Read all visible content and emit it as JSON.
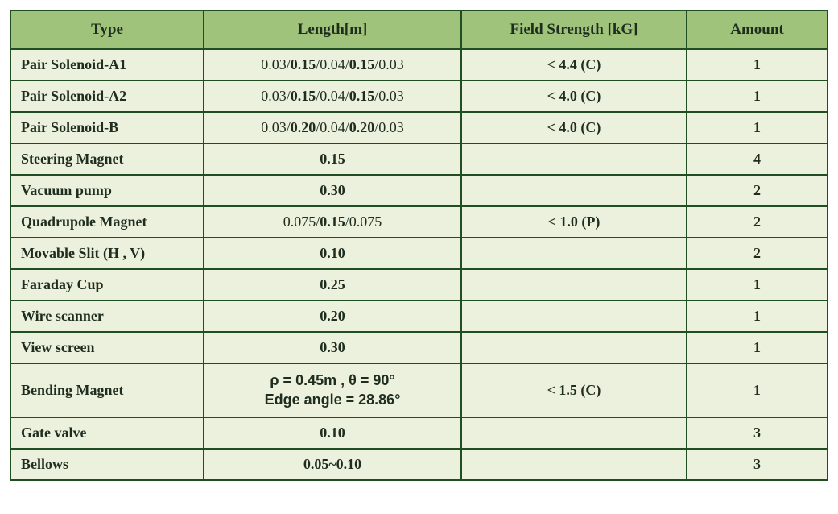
{
  "table": {
    "background_header": "#9fc37a",
    "background_body": "#ecf1de",
    "border_color": "#1f4e23",
    "text_color": "#1f2d1f",
    "columns": [
      {
        "key": "type",
        "label": "Type"
      },
      {
        "key": "length",
        "label": "Length[m]"
      },
      {
        "key": "field",
        "label": "Field Strength [kG]"
      },
      {
        "key": "amount",
        "label": "Amount"
      }
    ],
    "rows": [
      {
        "type": "Pair Solenoid-A1",
        "length_segments": [
          {
            "text": "0.03/",
            "weight": "normal"
          },
          {
            "text": "0.15",
            "weight": "bold"
          },
          {
            "text": "/0.04/",
            "weight": "normal"
          },
          {
            "text": "0.15",
            "weight": "bold"
          },
          {
            "text": "/0.03",
            "weight": "normal"
          }
        ],
        "field": "< 4.4 (C)",
        "amount": "1"
      },
      {
        "type": "Pair Solenoid-A2",
        "length_segments": [
          {
            "text": "0.03/",
            "weight": "normal"
          },
          {
            "text": "0.15",
            "weight": "bold"
          },
          {
            "text": "/0.04/",
            "weight": "normal"
          },
          {
            "text": "0.15",
            "weight": "bold"
          },
          {
            "text": "/0.03",
            "weight": "normal"
          }
        ],
        "field": "< 4.0 (C)",
        "amount": "1"
      },
      {
        "type": "Pair Solenoid-B",
        "length_segments": [
          {
            "text": "0.03/",
            "weight": "normal"
          },
          {
            "text": "0.20",
            "weight": "bold"
          },
          {
            "text": "/0.04/",
            "weight": "normal"
          },
          {
            "text": "0.20",
            "weight": "bold"
          },
          {
            "text": "/0.03",
            "weight": "normal"
          }
        ],
        "field": "< 4.0 (C)",
        "amount": "1"
      },
      {
        "type": "Steering Magnet",
        "length_segments": [
          {
            "text": "0.15",
            "weight": "bold"
          }
        ],
        "field": "",
        "amount": "4"
      },
      {
        "type": "Vacuum pump",
        "length_segments": [
          {
            "text": "0.30",
            "weight": "bold"
          }
        ],
        "field": "",
        "amount": "2"
      },
      {
        "type": "Quadrupole Magnet",
        "length_segments": [
          {
            "text": "0.075/",
            "weight": "normal"
          },
          {
            "text": "0.15",
            "weight": "bold"
          },
          {
            "text": "/0.075",
            "weight": "normal"
          }
        ],
        "field": "< 1.0 (P)",
        "amount": "2"
      },
      {
        "type": "Movable Slit (H , V)",
        "length_segments": [
          {
            "text": "0.10",
            "weight": "bold"
          }
        ],
        "field": "",
        "amount": "2"
      },
      {
        "type": "Faraday Cup",
        "length_segments": [
          {
            "text": "0.25",
            "weight": "bold"
          }
        ],
        "field": "",
        "amount": "1"
      },
      {
        "type": "Wire scanner",
        "length_segments": [
          {
            "text": "0.20",
            "weight": "bold"
          }
        ],
        "field": "",
        "amount": "1"
      },
      {
        "type": "View screen",
        "length_segments": [
          {
            "text": "0.30",
            "weight": "bold"
          }
        ],
        "field": "",
        "amount": "1"
      },
      {
        "type": "Bending Magnet",
        "length_special_lines": [
          "ρ = 0.45m , θ = 90°",
          "Edge angle = 28.86°"
        ],
        "field": "< 1.5 (C)",
        "amount": "1"
      },
      {
        "type": "Gate valve",
        "length_segments": [
          {
            "text": "0.10",
            "weight": "bold"
          }
        ],
        "field": "",
        "amount": "3"
      },
      {
        "type": "Bellows",
        "length_segments": [
          {
            "text": "0.05~0.10",
            "weight": "bold"
          }
        ],
        "field": "",
        "amount": "3"
      }
    ]
  }
}
